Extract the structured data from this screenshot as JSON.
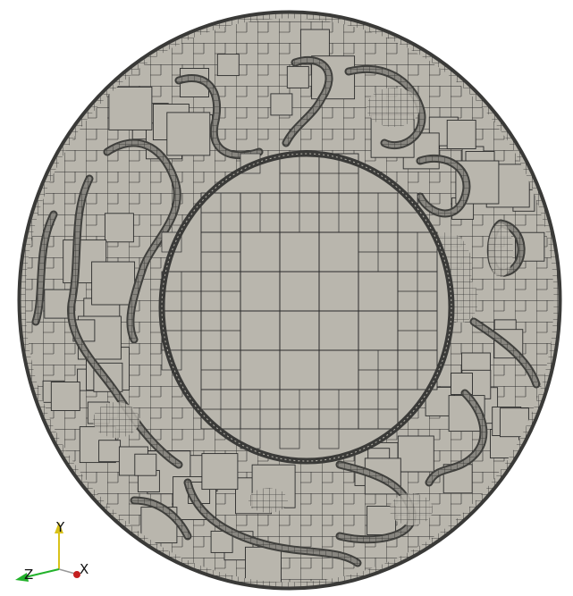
{
  "scene": {
    "background": "#ffffff",
    "mesh": {
      "fill": "#b9b6ad",
      "edge_color": "#2b2b2b",
      "refined_fill": "#3f3f3c",
      "rim_color": "#3a3a38"
    }
  },
  "orientation_axes": {
    "y_label": "Y",
    "z_label": "Z",
    "x_label": "X",
    "y_color": "#d9c21a",
    "z_color": "#22b22b",
    "x_color": "#c42020"
  }
}
